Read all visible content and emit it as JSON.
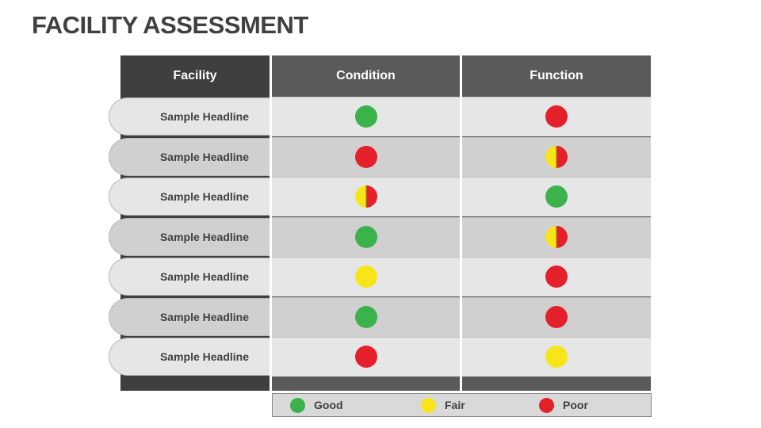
{
  "title": "FACILITY ASSESSMENT",
  "columns": {
    "facility": "Facility",
    "condition": "Condition",
    "function": "Function"
  },
  "status_colors": {
    "good": "#3bb24a",
    "fair": "#f7e51a",
    "poor": "#e4202a"
  },
  "rows": [
    {
      "label": "Sample Headline",
      "condition": "good",
      "function": "poor"
    },
    {
      "label": "Sample Headline",
      "condition": "poor",
      "function": "fair-poor"
    },
    {
      "label": "Sample Headline",
      "condition": "fair-poor",
      "function": "good"
    },
    {
      "label": "Sample Headline",
      "condition": "good",
      "function": "fair-poor"
    },
    {
      "label": "Sample Headline",
      "condition": "fair",
      "function": "poor"
    },
    {
      "label": "Sample Headline",
      "condition": "good",
      "function": "poor"
    },
    {
      "label": "Sample Headline",
      "condition": "poor",
      "function": "fair"
    }
  ],
  "legend": [
    {
      "status": "good",
      "label": "Good"
    },
    {
      "status": "fair",
      "label": "Fair"
    },
    {
      "status": "poor",
      "label": "Poor"
    }
  ]
}
